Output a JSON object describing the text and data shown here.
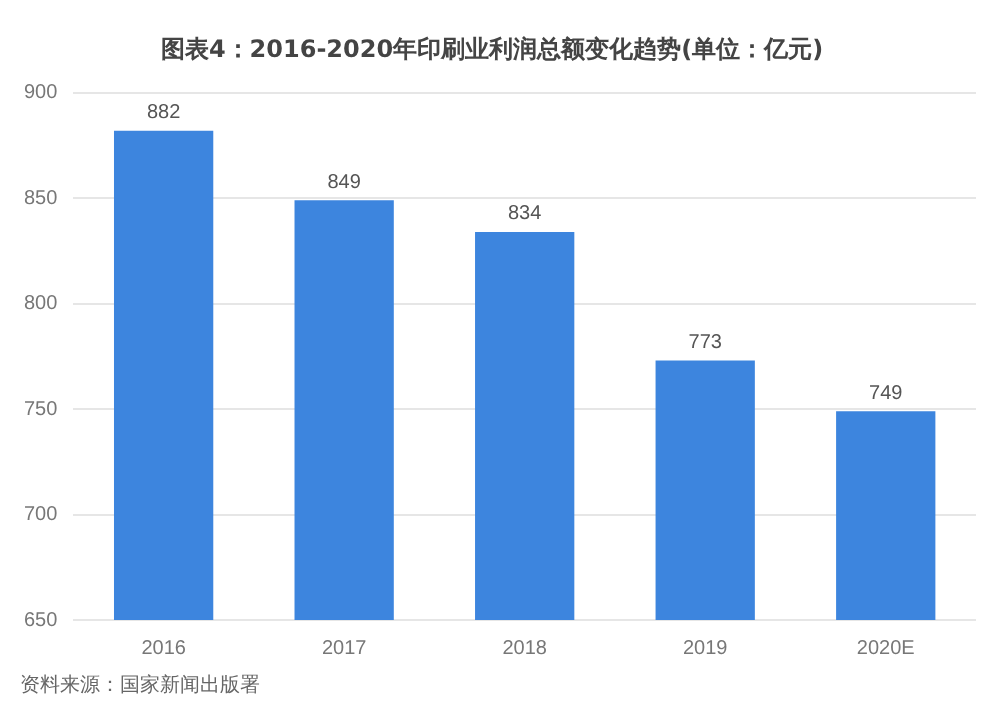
{
  "chart_data": {
    "type": "bar",
    "title": "图表4：2016-2020年印刷业利润总额变化趋势(单位：亿元)",
    "categories": [
      "2016",
      "2017",
      "2018",
      "2019",
      "2020E"
    ],
    "values": [
      882,
      849,
      834,
      773,
      749
    ],
    "color": "#3d85de",
    "ylim": [
      650,
      900
    ],
    "yticks": [
      650,
      700,
      750,
      800,
      850,
      900
    ],
    "grid": "y",
    "data_labels": true,
    "annotations": [
      "资料来源：国家新闻出版署"
    ]
  }
}
